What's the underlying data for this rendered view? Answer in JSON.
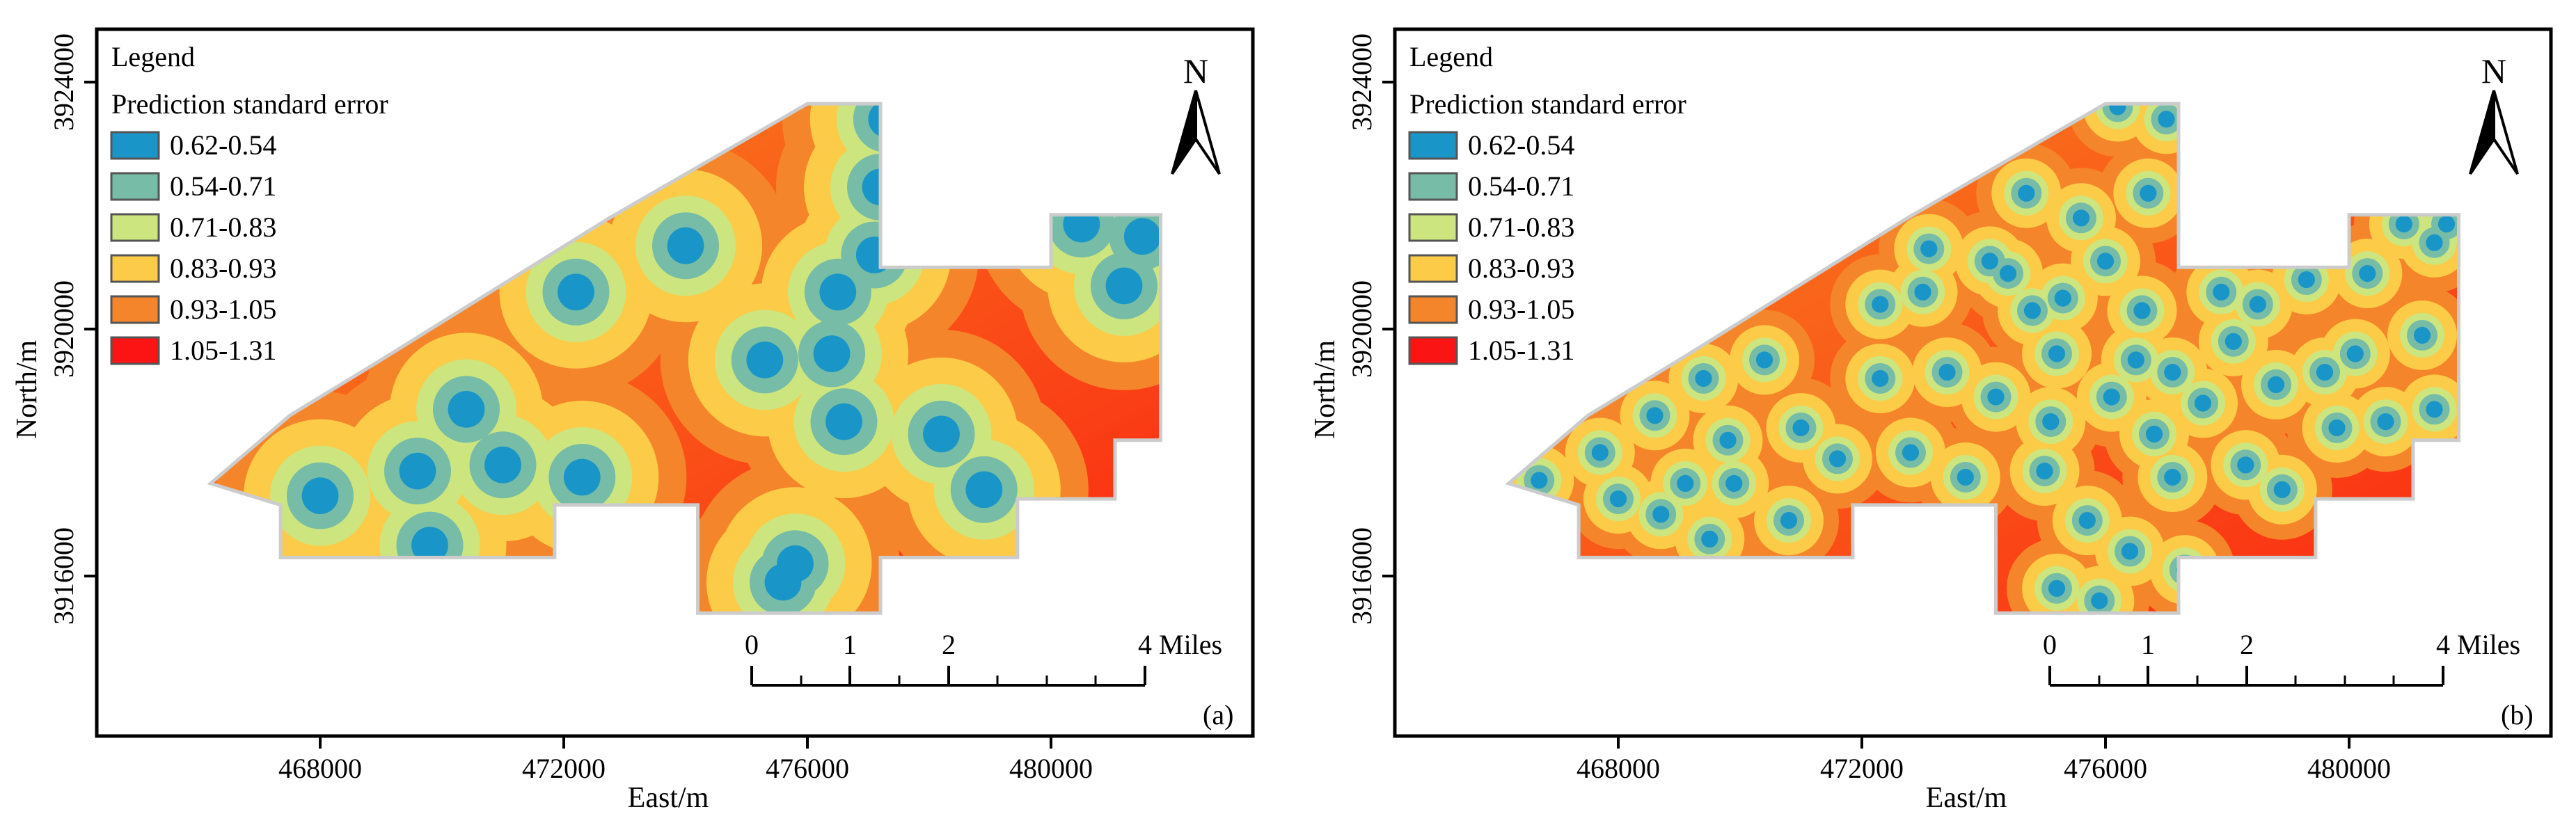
{
  "legend": {
    "title": "Legend",
    "subtitle": "Prediction standard error",
    "items": [
      {
        "label": "0.62-0.54",
        "color": "#1a95c7"
      },
      {
        "label": "0.54-0.71",
        "color": "#76bca6"
      },
      {
        "label": "0.71-0.83",
        "color": "#cde57f"
      },
      {
        "label": "0.83-0.93",
        "color": "#fccb47"
      },
      {
        "label": "0.93-1.05",
        "color": "#f5852a"
      },
      {
        "label": "1.05-1.31",
        "color": "#fb1414"
      }
    ]
  },
  "north_arrow": "N",
  "scale_bar": {
    "labels": [
      "0",
      "1",
      "2",
      "4 Miles"
    ]
  },
  "axes": {
    "x_title": "East/m",
    "y_title": "North/m",
    "x_ticks": [
      "468000",
      "472000",
      "476000",
      "480000"
    ],
    "y_ticks": [
      "3924000",
      "3920000",
      "3916000"
    ]
  },
  "panels": [
    {
      "id": "a",
      "label": "(a)",
      "pattern": "coarse"
    },
    {
      "id": "b",
      "label": "(b)",
      "pattern": "fine"
    }
  ],
  "map_data": {
    "type": "interpolated-surface",
    "x_range": [
      464000,
      483000
    ],
    "y_range": [
      3912400,
      3925100
    ],
    "extent_polygon": [
      [
        466200,
        3917500
      ],
      [
        467350,
        3917150
      ],
      [
        467350,
        3916300
      ],
      [
        471850,
        3916300
      ],
      [
        471850,
        3917150
      ],
      [
        474200,
        3917150
      ],
      [
        474200,
        3915400
      ],
      [
        477200,
        3915400
      ],
      [
        477200,
        3916300
      ],
      [
        479450,
        3916300
      ],
      [
        479450,
        3917250
      ],
      [
        481050,
        3917250
      ],
      [
        481050,
        3918200
      ],
      [
        481800,
        3918200
      ],
      [
        481800,
        3921850
      ],
      [
        480000,
        3921850
      ],
      [
        480000,
        3921000
      ],
      [
        477200,
        3921000
      ],
      [
        477200,
        3923650
      ],
      [
        476000,
        3923650
      ],
      [
        472750,
        3921800
      ],
      [
        469000,
        3919500
      ],
      [
        467500,
        3918600
      ]
    ],
    "samples_a": [
      [
        468000,
        3917300
      ],
      [
        469600,
        3917700
      ],
      [
        469800,
        3916500
      ],
      [
        470400,
        3918700
      ],
      [
        471000,
        3917800
      ],
      [
        472300,
        3917600
      ],
      [
        472200,
        3920600
      ],
      [
        474000,
        3921350
      ],
      [
        475300,
        3919500
      ],
      [
        475600,
        3915900
      ],
      [
        475800,
        3916200
      ],
      [
        476400,
        3919600
      ],
      [
        476500,
        3920600
      ],
      [
        476600,
        3918500
      ],
      [
        477100,
        3921200
      ],
      [
        477200,
        3922300
      ],
      [
        477300,
        3923400
      ],
      [
        478200,
        3918300
      ],
      [
        478900,
        3917400
      ],
      [
        481200,
        3920700
      ],
      [
        480500,
        3921700
      ],
      [
        481500,
        3921500
      ]
    ],
    "samples_b": [
      [
        466700,
        3917550
      ],
      [
        467700,
        3918000
      ],
      [
        468000,
        3917250
      ],
      [
        468600,
        3918600
      ],
      [
        468700,
        3917000
      ],
      [
        469100,
        3917500
      ],
      [
        469400,
        3919200
      ],
      [
        469500,
        3916600
      ],
      [
        469800,
        3918200
      ],
      [
        469900,
        3917500
      ],
      [
        470400,
        3919500
      ],
      [
        470800,
        3916900
      ],
      [
        471000,
        3918400
      ],
      [
        471600,
        3917900
      ],
      [
        472300,
        3920400
      ],
      [
        472300,
        3919200
      ],
      [
        473000,
        3920600
      ],
      [
        472800,
        3918000
      ],
      [
        473100,
        3921300
      ],
      [
        473400,
        3919300
      ],
      [
        473700,
        3917600
      ],
      [
        474100,
        3921100
      ],
      [
        474200,
        3918900
      ],
      [
        474400,
        3920900
      ],
      [
        474700,
        3922200
      ],
      [
        474800,
        3920300
      ],
      [
        475100,
        3918500
      ],
      [
        475300,
        3920500
      ],
      [
        475000,
        3917700
      ],
      [
        475200,
        3915800
      ],
      [
        475200,
        3919600
      ],
      [
        475600,
        3921800
      ],
      [
        475700,
        3916900
      ],
      [
        475900,
        3915600
      ],
      [
        476000,
        3921100
      ],
      [
        476100,
        3918900
      ],
      [
        476200,
        3923600
      ],
      [
        476400,
        3916400
      ],
      [
        476500,
        3919500
      ],
      [
        476600,
        3920300
      ],
      [
        476700,
        3922200
      ],
      [
        476800,
        3918300
      ],
      [
        477000,
        3923400
      ],
      [
        477100,
        3919300
      ],
      [
        477100,
        3917600
      ],
      [
        477300,
        3916100
      ],
      [
        477600,
        3918800
      ],
      [
        477900,
        3920600
      ],
      [
        478100,
        3919800
      ],
      [
        478300,
        3917800
      ],
      [
        478500,
        3920400
      ],
      [
        478800,
        3919100
      ],
      [
        478900,
        3917400
      ],
      [
        479300,
        3920800
      ],
      [
        479600,
        3919300
      ],
      [
        479800,
        3918400
      ],
      [
        480100,
        3919600
      ],
      [
        480300,
        3920900
      ],
      [
        480600,
        3918500
      ],
      [
        480900,
        3921700
      ],
      [
        481200,
        3919900
      ],
      [
        481400,
        3921400
      ],
      [
        481400,
        3918700
      ],
      [
        481600,
        3921700
      ]
    ]
  }
}
